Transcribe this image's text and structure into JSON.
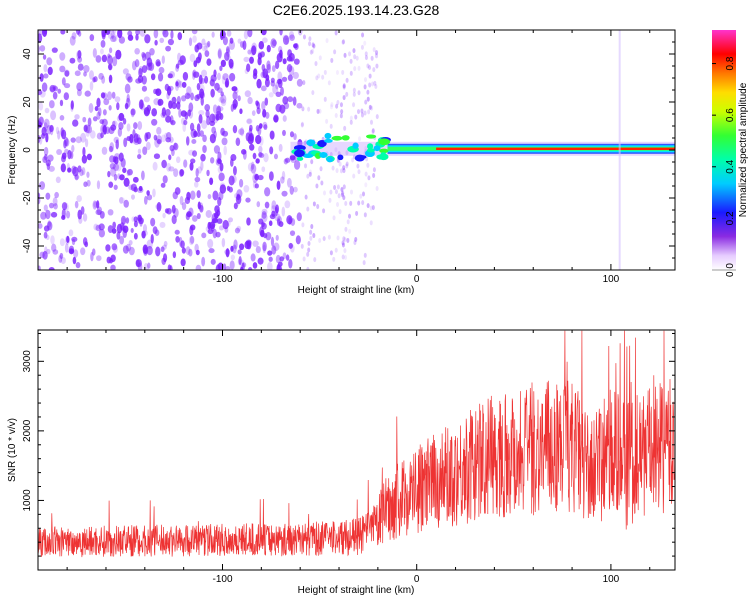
{
  "title": "C2E6.2025.193.14.23.G28",
  "colors": {
    "snr_line": "#ee3333",
    "speck": "#7a1fff",
    "axis": "#000000"
  },
  "chart_data": [
    {
      "type": "heatmap",
      "xlabel": "Height of straight line (km)",
      "ylabel": "Frequency (Hz)",
      "xlim": [
        -195,
        133
      ],
      "ylim": [
        -50,
        50
      ],
      "x_ticks": [
        -100,
        0,
        100
      ],
      "x_tick_labels": [
        "-100",
        "0",
        "100"
      ],
      "y_ticks": [
        -40,
        -20,
        0,
        20,
        40
      ],
      "y_tick_labels": [
        "-40",
        "-20",
        "0",
        "20",
        "40"
      ],
      "colorbar": {
        "label": "Normalized spectral amplitude",
        "range": [
          0,
          0.93
        ],
        "ticks": [
          0.0,
          0.2,
          0.4,
          0.6,
          0.8
        ],
        "tick_labels": [
          "0.0",
          "0.2",
          "0.4",
          "0.6",
          "0.8"
        ],
        "colormap": "rainbow (white-purple-blue-cyan-green-yellow-red-magenta)"
      },
      "features": [
        {
          "name": "noise-region",
          "x_range": [
            -195,
            -60
          ],
          "freq_range": [
            -50,
            50
          ],
          "amplitude": 0.1
        },
        {
          "name": "sparse-noise",
          "x_range": [
            -60,
            -20
          ],
          "freq_range": [
            -50,
            50
          ],
          "amplitude": 0.05
        },
        {
          "name": "signal-line",
          "x_range": [
            -65,
            133
          ],
          "freq_center": 0.5,
          "peak_amplitude": 0.9
        }
      ]
    },
    {
      "type": "line",
      "xlabel": "Height of straight line (km)",
      "ylabel": "SNR (10 * v/v)",
      "xlim": [
        -195,
        133
      ],
      "ylim": [
        0,
        3450
      ],
      "x_ticks": [
        -100,
        0,
        100
      ],
      "x_tick_labels": [
        "-100",
        "0",
        "100"
      ],
      "y_ticks": [
        1000,
        2000,
        3000
      ],
      "y_tick_labels": [
        "1000",
        "2000",
        "3000"
      ],
      "series": [
        {
          "x": [
            -195,
            -150,
            -100,
            -60,
            -30,
            -22,
            -15,
            0,
            20,
            40,
            60,
            80,
            90,
            100,
            110,
            120,
            133
          ],
          "y": [
            400,
            420,
            430,
            440,
            480,
            600,
            900,
            1150,
            1400,
            1650,
            1750,
            1800,
            1400,
            1700,
            1600,
            1700,
            1800
          ]
        }
      ]
    }
  ]
}
